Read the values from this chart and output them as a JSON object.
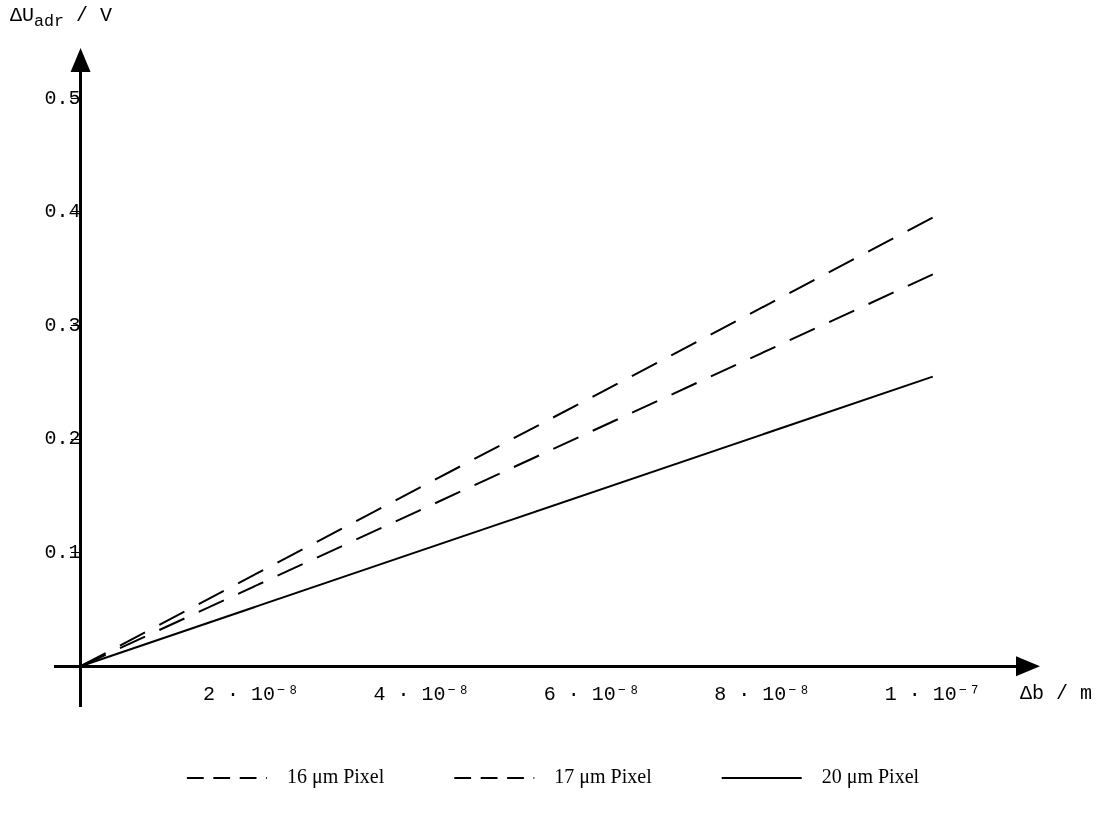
{
  "chart_data": {
    "type": "line",
    "xlabel": "Δb / m",
    "ylabel": "ΔU$_{adr}$ / V",
    "xlim": [
      -3e-09,
      1.1e-07
    ],
    "ylim": [
      -0.035,
      0.525
    ],
    "xticks": [
      {
        "value": 2e-08,
        "label": "2 · 10⁻⁸"
      },
      {
        "value": 4e-08,
        "label": "4 · 10⁻⁸"
      },
      {
        "value": 6e-08,
        "label": "6 · 10⁻⁸"
      },
      {
        "value": 8e-08,
        "label": "8 · 10⁻⁸"
      },
      {
        "value": 1e-07,
        "label": "1 · 10⁻⁷"
      }
    ],
    "yticks": [
      0.1,
      0.2,
      0.3,
      0.4,
      0.5
    ],
    "x": [
      0,
      1e-07
    ],
    "series": [
      {
        "name": "16 μm Pixel",
        "color": "#000000",
        "values": [
          0,
          0.395
        ],
        "line_style": "dashed"
      },
      {
        "name": "17 μm Pixel",
        "color": "#000000",
        "values": [
          0,
          0.345
        ],
        "line_style": "dashed"
      },
      {
        "name": "20 μm Pixel",
        "color": "#000000",
        "values": [
          0,
          0.255
        ],
        "line_style": "solid"
      }
    ],
    "legend": "bottom",
    "grid": false,
    "marker": "none"
  }
}
